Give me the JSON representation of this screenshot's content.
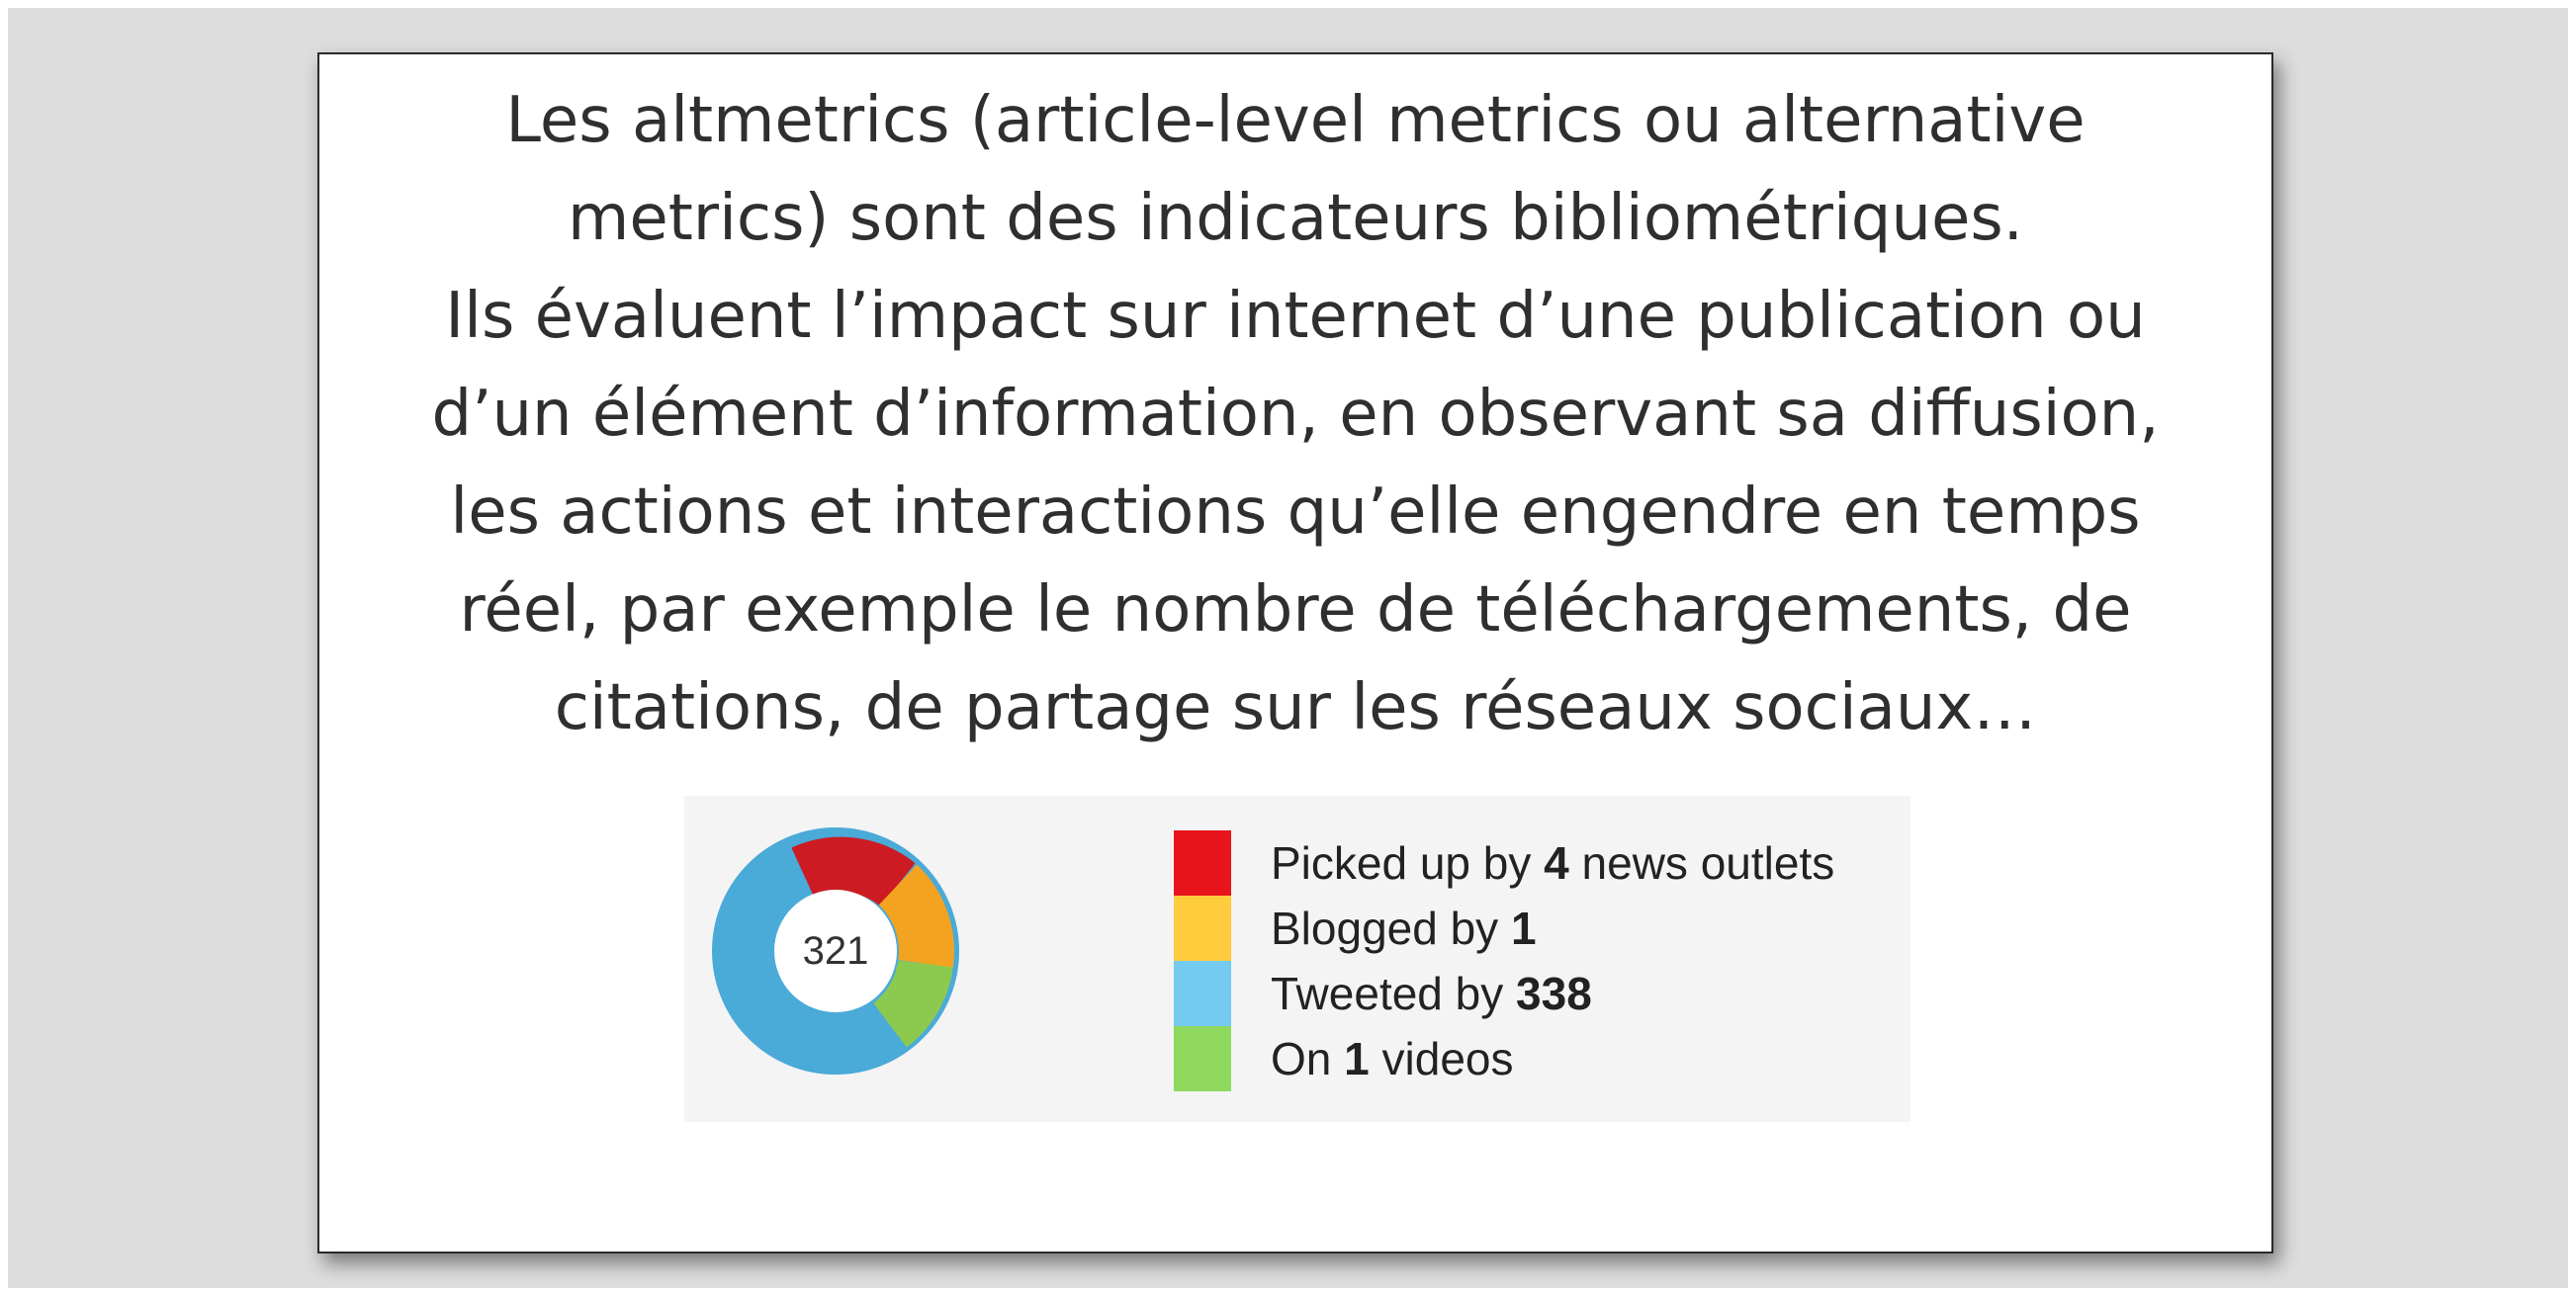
{
  "slide": {
    "lines": [
      "Les altmetrics (article-level metrics ou alternative",
      "metrics) sont des indicateurs bibliométriques.",
      "Ils évaluent l’impact sur internet d’une publication ou",
      "d’un élément d’information, en observant sa diffusion,",
      "les actions et interactions qu’elle engendre en temps",
      "réel, par exemple le nombre de téléchargements, de",
      "citations, de partage sur les réseaux sociaux…"
    ]
  },
  "badge": {
    "score": "321",
    "colors": {
      "news": "#e8141b",
      "blogs": "#fecc3c",
      "twitter": "#74cbef",
      "video": "#8fd85e",
      "donut_blue": "#4aaad8",
      "donut_red": "#cc1b22",
      "donut_orange": "#f4a321",
      "donut_green": "#8cc94f"
    },
    "legend": [
      {
        "prefix": "Picked up by ",
        "count": "4",
        "suffix": " news outlets"
      },
      {
        "prefix": "Blogged by ",
        "count": "1",
        "suffix": ""
      },
      {
        "prefix": "Tweeted by ",
        "count": "338",
        "suffix": ""
      },
      {
        "prefix": "On ",
        "count": "1",
        "suffix": " videos"
      }
    ]
  }
}
